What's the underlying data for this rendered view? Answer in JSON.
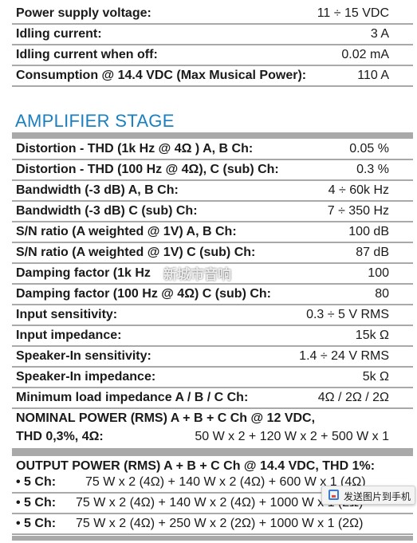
{
  "power_section": {
    "rows": [
      {
        "label": "Power supply voltage:",
        "value": "11 ÷ 15 VDC"
      },
      {
        "label": "Idling current:",
        "value": "3 A"
      },
      {
        "label": "Idling current when off:",
        "value": "0.02 mA"
      },
      {
        "label": "Consumption @ 14.4 VDC (Max Musical Power):",
        "value": "110 A"
      }
    ]
  },
  "amplifier_section": {
    "heading": "AMPLIFIER STAGE",
    "rows": [
      {
        "label": "Distortion - THD (1k Hz @ 4Ω ) A, B Ch:",
        "value": "0.05 %"
      },
      {
        "label": "Distortion - THD (100 Hz @ 4Ω), C (sub) Ch:",
        "value": "0.3 %"
      },
      {
        "label": "Bandwidth (-3 dB) A, B Ch:",
        "value": "4 ÷ 60k Hz"
      },
      {
        "label": "Bandwidth (-3 dB) C (sub) Ch:",
        "value": "7 ÷ 350 Hz"
      },
      {
        "label": "S/N ratio  (A weighted @ 1V) A, B Ch:",
        "value": "100 dB"
      },
      {
        "label": "S/N ratio  (A weighted @ 1V) C (sub) Ch:",
        "value": "87 dB"
      },
      {
        "label": "Damping factor (1k Hz",
        "value": "100"
      },
      {
        "label": "Damping factor (100 Hz @ 4Ω) C (sub) Ch:",
        "value": "80"
      },
      {
        "label": "Input sensitivity:",
        "value": "0.3 ÷ 5 V RMS"
      },
      {
        "label": "Input impedance:",
        "value": "15k Ω"
      },
      {
        "label": "Speaker-In sensitivity:",
        "value": "1.4 ÷ 24 V RMS"
      },
      {
        "label": "Speaker-In impedance:",
        "value": "5k Ω"
      },
      {
        "label": "Minimum load impedance A / B / C Ch:",
        "value": "4Ω / 2Ω / 2Ω"
      }
    ],
    "nominal": {
      "line1": "NOMINAL POWER (RMS) A + B + C Ch @ 12 VDC,",
      "line2": "THD 0,3%, 4Ω:",
      "value": "50 W x 2 + 120 W x 2 + 500 W x 1"
    },
    "output": {
      "title": "OUTPUT POWER (RMS) A + B + C Ch @ 14.4 VDC, THD 1%:",
      "items": [
        {
          "bullet": "• 5 Ch:",
          "value": "75 W x 2 (4Ω) + 140 W x 2 (4Ω) + 600 W x 1 (4Ω)"
        },
        {
          "bullet": "• 5 Ch:",
          "value": "75 W x 2 (4Ω) + 140 W x 2 (4Ω) + 1000 W x 1 (2Ω)"
        },
        {
          "bullet": "• 5 Ch:",
          "value": "75 W x 2 (4Ω) + 250 W x 2 (2Ω) + 1000 W x 1 (2Ω)"
        }
      ]
    }
  },
  "overlay": {
    "watermark": "新城市音响",
    "send_button": "发送图片到手机"
  }
}
